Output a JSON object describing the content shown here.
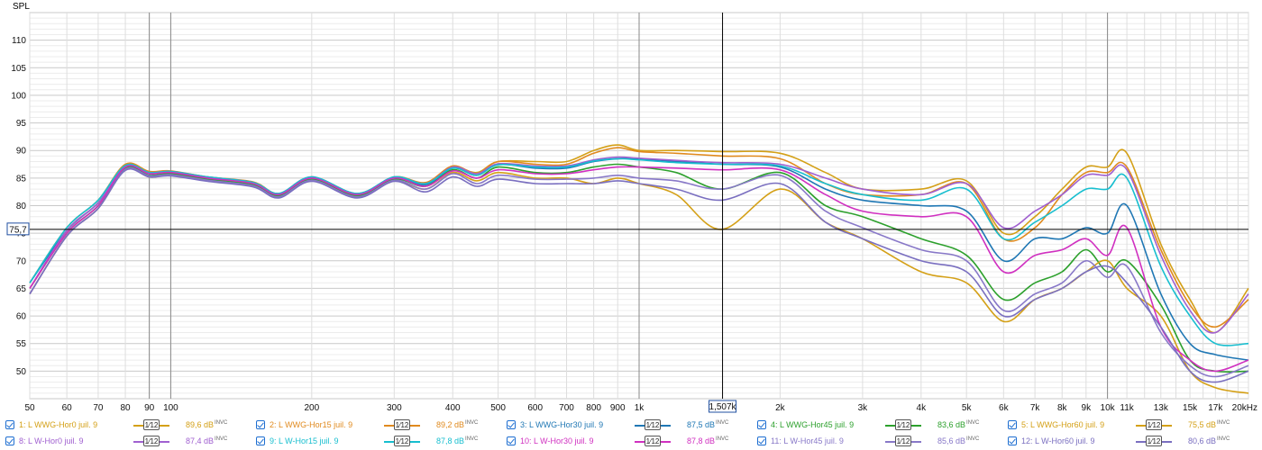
{
  "chart_data": {
    "type": "line",
    "ylabel": "SPL",
    "xscale": "log",
    "xlim": [
      50,
      20000
    ],
    "ylim": [
      45,
      115
    ],
    "y_ticks": [
      50,
      55,
      60,
      65,
      70,
      75,
      80,
      85,
      90,
      95,
      100,
      105,
      110
    ],
    "x_ticks": [
      {
        "v": 50,
        "label": "50"
      },
      {
        "v": 60,
        "label": "60"
      },
      {
        "v": 70,
        "label": "70"
      },
      {
        "v": 80,
        "label": "80"
      },
      {
        "v": 90,
        "label": "90"
      },
      {
        "v": 100,
        "label": "100"
      },
      {
        "v": 200,
        "label": "200"
      },
      {
        "v": 300,
        "label": "300"
      },
      {
        "v": 400,
        "label": "400"
      },
      {
        "v": 500,
        "label": "500"
      },
      {
        "v": 600,
        "label": "600"
      },
      {
        "v": 700,
        "label": "700"
      },
      {
        "v": 800,
        "label": "800"
      },
      {
        "v": 900,
        "label": "900"
      },
      {
        "v": 1000,
        "label": "1k"
      },
      {
        "v": 2000,
        "label": "2k"
      },
      {
        "v": 3000,
        "label": "3k"
      },
      {
        "v": 4000,
        "label": "4k"
      },
      {
        "v": 5000,
        "label": "5k"
      },
      {
        "v": 6000,
        "label": "6k"
      },
      {
        "v": 7000,
        "label": "7k"
      },
      {
        "v": 8000,
        "label": "8k"
      },
      {
        "v": 9000,
        "label": "9k"
      },
      {
        "v": 10000,
        "label": "10k"
      },
      {
        "v": 11000,
        "label": "11k"
      },
      {
        "v": 13000,
        "label": "13k"
      },
      {
        "v": 15000,
        "label": "15k"
      },
      {
        "v": 17000,
        "label": "17k"
      },
      {
        "v": 20000,
        "label": "20kHz"
      }
    ],
    "major_vlines": [
      90,
      100,
      1000,
      10000
    ],
    "cursor": {
      "x": 1507,
      "y": 75.7,
      "x_label": "1,507k",
      "y_label": "75,7"
    },
    "x": [
      50,
      60,
      70,
      80,
      90,
      100,
      120,
      150,
      170,
      200,
      250,
      300,
      350,
      400,
      450,
      500,
      600,
      700,
      800,
      900,
      1000,
      1200,
      1500,
      2000,
      2500,
      3000,
      4000,
      5000,
      6000,
      7000,
      8000,
      9000,
      10000,
      11000,
      13000,
      15000,
      17000,
      20000
    ],
    "series": [
      {
        "name": "1: L WWG-Hor0 juil. 9",
        "color": "#d4a017",
        "level": "89,6 dB",
        "values": [
          65,
          75,
          80,
          87,
          86,
          86,
          85,
          84,
          82,
          85,
          82,
          85,
          84,
          87,
          86,
          88,
          88,
          88,
          90,
          91,
          90,
          90,
          89.8,
          89.5,
          86,
          83,
          83,
          84.5,
          75,
          78,
          83,
          87,
          87,
          89.5,
          73,
          63,
          57,
          65
        ]
      },
      {
        "name": "2: L WWG-Hor15 juil. 9",
        "color": "#e08a1e",
        "level": "89,2 dB",
        "values": [
          66,
          76,
          81,
          87.5,
          86.2,
          86.3,
          85.2,
          84.3,
          82.2,
          85.2,
          82.2,
          85.2,
          84.2,
          87.2,
          85.8,
          88,
          87.5,
          87.5,
          89.5,
          90.5,
          89.8,
          89.5,
          89,
          88.5,
          84,
          82,
          82,
          84,
          74,
          76,
          82,
          86,
          86,
          87,
          72,
          62,
          58,
          63
        ]
      },
      {
        "name": "3: L WWG-Hor30 juil. 9",
        "color": "#1f77b4",
        "level": "87,5 dB",
        "values": [
          66,
          75.5,
          80.5,
          87,
          85.8,
          86,
          85,
          84,
          82,
          85,
          82,
          85,
          83.8,
          86.8,
          85.5,
          87.5,
          86.8,
          86.8,
          88,
          88.5,
          88.5,
          88,
          87.5,
          87,
          83,
          81,
          80,
          79,
          70,
          74,
          74,
          76,
          75,
          80,
          64,
          55,
          53,
          52
        ]
      },
      {
        "name": "4: L WWG-Hor45 juil. 9",
        "color": "#2ca02c",
        "level": "83,6 dB",
        "values": [
          65,
          75,
          80,
          86.8,
          85.5,
          85.8,
          84.8,
          83.8,
          81.8,
          84.8,
          81.8,
          84.8,
          83.5,
          86.5,
          85,
          87,
          86,
          86,
          87,
          87.5,
          87,
          86,
          83,
          86,
          80,
          78,
          74,
          71,
          63,
          66,
          68,
          72,
          68,
          70,
          62,
          52,
          50,
          50
        ]
      },
      {
        "name": "5: L WWG-Hor60 juil. 9",
        "color": "#d4a017",
        "level": "75,5 dB",
        "values": [
          64,
          74.5,
          79.5,
          86.5,
          85.2,
          85.5,
          84.5,
          83.5,
          81.5,
          84.5,
          81.5,
          84.5,
          83,
          86,
          84.5,
          86,
          85,
          85,
          84,
          85,
          84,
          82,
          75.7,
          83,
          77,
          74,
          68,
          66,
          59,
          63,
          65,
          68,
          70,
          65,
          60,
          50,
          47,
          46
        ]
      },
      {
        "name": "8: L W-Hor0 juil. 9",
        "color": "#a060d0",
        "level": "87,4 dB",
        "values": [
          65,
          75.5,
          80.5,
          87.2,
          86,
          86.2,
          85.2,
          84.2,
          82.2,
          85.2,
          82.2,
          85.2,
          84,
          87,
          85.8,
          87.6,
          87.2,
          87.2,
          88.3,
          88.8,
          88.6,
          88.2,
          87.8,
          87.5,
          85,
          83,
          82,
          84,
          76,
          79,
          82,
          85.5,
          85.5,
          86.5,
          71,
          61,
          57,
          64
        ]
      },
      {
        "name": "9: L W-Hor15 juil. 9",
        "color": "#17becf",
        "level": "87,8 dB",
        "values": [
          66,
          76,
          81,
          87.3,
          86,
          86.2,
          85.2,
          84.2,
          82.2,
          85.2,
          82.2,
          85.2,
          84,
          86.8,
          85.5,
          87.4,
          87,
          87,
          88.1,
          88.5,
          88.3,
          87.8,
          87.5,
          87.2,
          84,
          82,
          81,
          83,
          74,
          77,
          80,
          83,
          83,
          85,
          69,
          60,
          55,
          55
        ]
      },
      {
        "name": "10: L W-Hor30 juil. 9",
        "color": "#d030c0",
        "level": "87,8 dB",
        "values": [
          65,
          75,
          80,
          87,
          85.8,
          86,
          85,
          84,
          82,
          85,
          82,
          85,
          83.5,
          86.3,
          85,
          86.5,
          85.8,
          85.8,
          86.5,
          87,
          87,
          86.8,
          86.5,
          86.5,
          82,
          79,
          78,
          78,
          68,
          71,
          72,
          74,
          71,
          76,
          58,
          52,
          50,
          52
        ]
      },
      {
        "name": "11: L W-Hor45 juil. 9",
        "color": "#8878c8",
        "level": "85,6 dB",
        "values": [
          64,
          74.5,
          79.5,
          86.6,
          85.4,
          85.6,
          84.6,
          83.6,
          81.6,
          84.6,
          81.6,
          84.6,
          83,
          85.8,
          84,
          85.5,
          84.8,
          84.8,
          85,
          85.5,
          85,
          84.5,
          83,
          85.5,
          79,
          76,
          72,
          70,
          61,
          64,
          66,
          70,
          67,
          69,
          57,
          51,
          49,
          51
        ]
      },
      {
        "name": "12: L W-Hor60 juil. 9",
        "color": "#7a6fc0",
        "level": "80,6 dB",
        "values": [
          64,
          74.5,
          79.5,
          86.4,
          85.2,
          85.4,
          84.4,
          83.4,
          81.4,
          84.4,
          81.4,
          84.4,
          82.5,
          85.2,
          83.5,
          84.8,
          84,
          84,
          84,
          84.5,
          84,
          83,
          81,
          84,
          77,
          74,
          70,
          68,
          60,
          63,
          65,
          68,
          69,
          66,
          58,
          50,
          48,
          50
        ]
      }
    ]
  },
  "legend": {
    "smoothing_label": "1⁄12",
    "suffix": "INVC",
    "entries": [
      {
        "name": "1: L WWG-Hor0 juil. 9",
        "level": "89,6 dB",
        "color": "#d4a017"
      },
      {
        "name": "2: L WWG-Hor15 juil. 9",
        "level": "89,2 dB",
        "color": "#e08a1e"
      },
      {
        "name": "3: L WWG-Hor30 juil. 9",
        "level": "87,5 dB",
        "color": "#1f77b4"
      },
      {
        "name": "4: L WWG-Hor45 juil. 9",
        "level": "83,6 dB",
        "color": "#2ca02c"
      },
      {
        "name": "5: L WWG-Hor60 juil. 9",
        "level": "75,5 dB",
        "color": "#d4a017"
      },
      {
        "name": "8: L W-Hor0 juil. 9",
        "level": "87,4 dB",
        "color": "#a060d0"
      },
      {
        "name": "9: L W-Hor15 juil. 9",
        "level": "87,8 dB",
        "color": "#17becf"
      },
      {
        "name": "10: L W-Hor30 juil. 9",
        "level": "87,8 dB",
        "color": "#d030c0"
      },
      {
        "name": "11: L W-Hor45 juil. 9",
        "level": "85,6 dB",
        "color": "#8878c8"
      },
      {
        "name": "12: L W-Hor60 juil. 9",
        "level": "80,6 dB",
        "color": "#7a6fc0"
      }
    ]
  }
}
